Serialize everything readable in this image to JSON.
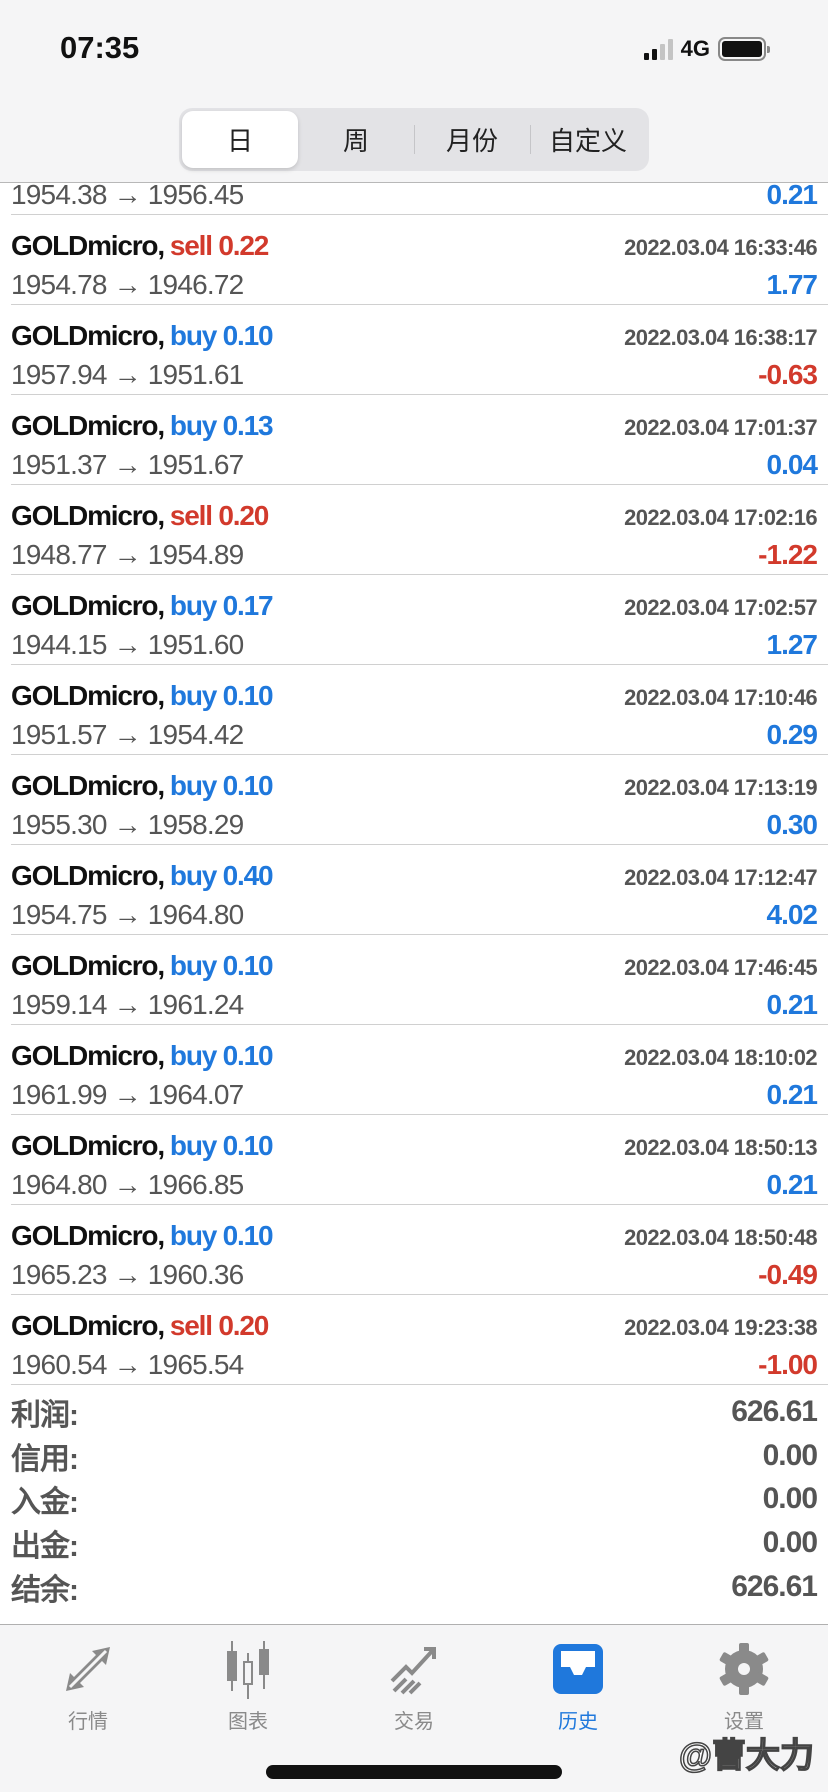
{
  "status_bar": {
    "time": "07:35",
    "network": "4G"
  },
  "segments": [
    {
      "label": "日",
      "active": true
    },
    {
      "label": "周"
    },
    {
      "label": "月份"
    },
    {
      "label": "自定义"
    }
  ],
  "partial_row": {
    "prices": "1954.38 → 1956.45",
    "profit": "0.21"
  },
  "deals": [
    {
      "symbol": "GOLDmicro,",
      "side": "sell 0.22",
      "type": "sell",
      "datetime": "2022.03.04 16:33:46",
      "prices": "1954.78 → 1946.72",
      "profit": "1.77"
    },
    {
      "symbol": "GOLDmicro,",
      "side": "buy 0.10",
      "type": "buy",
      "datetime": "2022.03.04 16:38:17",
      "prices": "1957.94 → 1951.61",
      "profit": "-0.63"
    },
    {
      "symbol": "GOLDmicro,",
      "side": "buy 0.13",
      "type": "buy",
      "datetime": "2022.03.04 17:01:37",
      "prices": "1951.37 → 1951.67",
      "profit": "0.04"
    },
    {
      "symbol": "GOLDmicro,",
      "side": "sell 0.20",
      "type": "sell",
      "datetime": "2022.03.04 17:02:16",
      "prices": "1948.77 → 1954.89",
      "profit": "-1.22"
    },
    {
      "symbol": "GOLDmicro,",
      "side": "buy 0.17",
      "type": "buy",
      "datetime": "2022.03.04 17:02:57",
      "prices": "1944.15 → 1951.60",
      "profit": "1.27"
    },
    {
      "symbol": "GOLDmicro,",
      "side": "buy 0.10",
      "type": "buy",
      "datetime": "2022.03.04 17:10:46",
      "prices": "1951.57 → 1954.42",
      "profit": "0.29"
    },
    {
      "symbol": "GOLDmicro,",
      "side": "buy 0.10",
      "type": "buy",
      "datetime": "2022.03.04 17:13:19",
      "prices": "1955.30 → 1958.29",
      "profit": "0.30"
    },
    {
      "symbol": "GOLDmicro,",
      "side": "buy 0.40",
      "type": "buy",
      "datetime": "2022.03.04 17:12:47",
      "prices": "1954.75 → 1964.80",
      "profit": "4.02"
    },
    {
      "symbol": "GOLDmicro,",
      "side": "buy 0.10",
      "type": "buy",
      "datetime": "2022.03.04 17:46:45",
      "prices": "1959.14 → 1961.24",
      "profit": "0.21"
    },
    {
      "symbol": "GOLDmicro,",
      "side": "buy 0.10",
      "type": "buy",
      "datetime": "2022.03.04 18:10:02",
      "prices": "1961.99 → 1964.07",
      "profit": "0.21"
    },
    {
      "symbol": "GOLDmicro,",
      "side": "buy 0.10",
      "type": "buy",
      "datetime": "2022.03.04 18:50:13",
      "prices": "1964.80 → 1966.85",
      "profit": "0.21"
    },
    {
      "symbol": "GOLDmicro,",
      "side": "buy 0.10",
      "type": "buy",
      "datetime": "2022.03.04 18:50:48",
      "prices": "1965.23 → 1960.36",
      "profit": "-0.49"
    },
    {
      "symbol": "GOLDmicro,",
      "side": "sell 0.20",
      "type": "sell",
      "datetime": "2022.03.04 19:23:38",
      "prices": "1960.54 → 1965.54",
      "profit": "-1.00"
    }
  ],
  "summary": [
    {
      "label": "利润:",
      "value": "626.61"
    },
    {
      "label": "信用:",
      "value": "0.00"
    },
    {
      "label": "入金:",
      "value": "0.00"
    },
    {
      "label": "出金:",
      "value": "0.00"
    },
    {
      "label": "结余:",
      "value": "626.61"
    }
  ],
  "tabs": [
    {
      "label": "行情",
      "icon": "quotes-arrows-icon"
    },
    {
      "label": "图表",
      "icon": "candlestick-chart-icon"
    },
    {
      "label": "交易",
      "icon": "trade-trend-icon"
    },
    {
      "label": "历史",
      "icon": "history-inbox-icon",
      "active": true
    },
    {
      "label": "设置",
      "icon": "gear-icon"
    }
  ],
  "watermark": "@曹大力",
  "colors": {
    "buy": "#1f78dc",
    "sell": "#d23a2c",
    "active_tab": "#1f78dc"
  }
}
